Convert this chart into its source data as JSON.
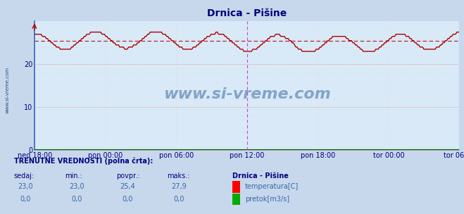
{
  "title": "Drnica - Pišine",
  "title_color": "#000080",
  "bg_color": "#d8eaf8",
  "outer_bg_color": "#c8d8ec",
  "x_labels": [
    "ned 18:00",
    "pon 00:00",
    "pon 06:00",
    "pon 12:00",
    "pon 18:00",
    "tor 00:00",
    "tor 06:00"
  ],
  "x_label_color": "#000080",
  "y_ticks": [
    0,
    10,
    20
  ],
  "y_min": 0,
  "y_max": 30,
  "grid_color_major": "#ee8888",
  "grid_color_minor": "#f8cccc",
  "temp_color": "#aa0000",
  "temp_avg": 25.4,
  "watermark_text": "www.si-vreme.com",
  "watermark_color": "#1a4f8a",
  "sidebar_text": "www.si-vreme.com",
  "sidebar_color": "#1a4f8a",
  "vline_color": "#cc44cc",
  "footer_label_color": "#000080",
  "footer_value_color": "#3366aa",
  "n_points": 336,
  "temp_min": 23.0,
  "temp_max": 27.9,
  "temp_current": 23.0,
  "pretok_sedaj": "0,0",
  "pretok_min": "0,0",
  "pretok_povpr": "0,0",
  "pretok_maks": "0,0"
}
